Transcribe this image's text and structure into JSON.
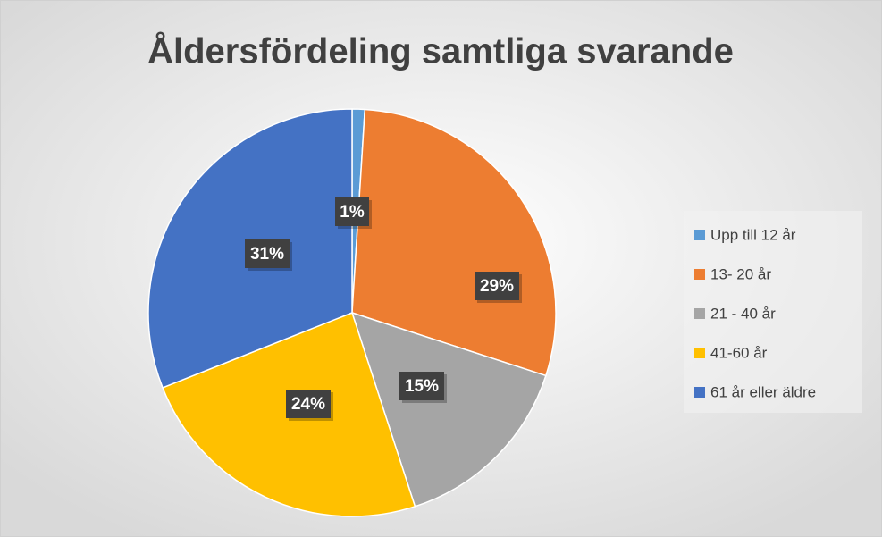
{
  "chart_data": {
    "type": "pie",
    "title": "Åldersfördeling samtliga svarande",
    "categories": [
      "Upp till 12 år",
      "13- 20 år",
      "21 - 40 år",
      "41-60 år",
      "61 år eller äldre"
    ],
    "values": [
      1,
      29,
      15,
      24,
      31
    ],
    "value_labels": [
      "1%",
      "29%",
      "15%",
      "24%",
      "31%"
    ],
    "colors": [
      "#5b9bd5",
      "#ed7d31",
      "#a5a5a5",
      "#ffc000",
      "#4472c4"
    ],
    "legend": "right"
  }
}
